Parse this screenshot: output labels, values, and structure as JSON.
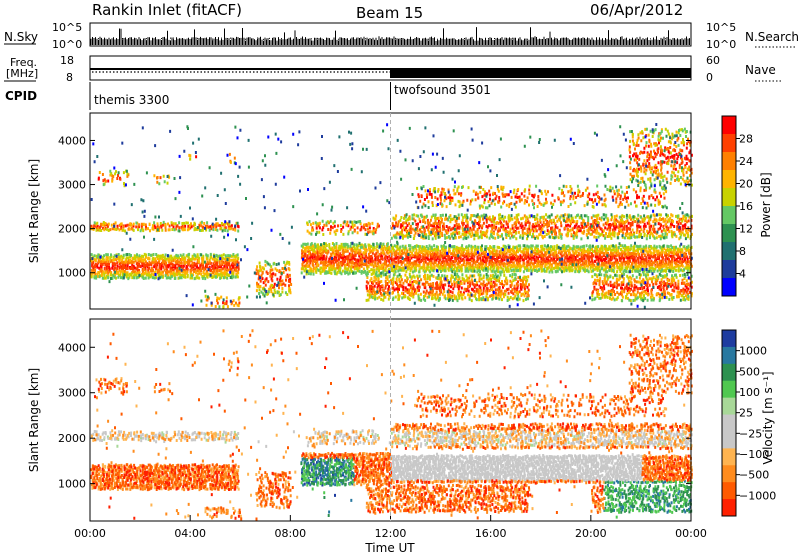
{
  "header": {
    "station": "Rankin Inlet (fitACF)",
    "beam": "Beam 15",
    "date": "06/Apr/2012"
  },
  "chart_data": [
    {
      "type": "line",
      "panel": "noise",
      "left_label": "N.Sky",
      "right_label": "N.Search",
      "left_ticks": [
        "10^5",
        "10^0"
      ],
      "right_ticks": [
        "10^5",
        "10^0"
      ]
    },
    {
      "type": "line",
      "panel": "frequency",
      "left_label_1": "Freq.",
      "left_label_2": "[MHz]",
      "right_label": "Nave",
      "left_ticks": [
        "18",
        "8"
      ],
      "right_ticks": [
        "60",
        "0"
      ]
    },
    {
      "type": "table",
      "panel": "cpid",
      "label": "CPID",
      "segments": [
        {
          "name": "themis 3300",
          "start_hour": 0
        },
        {
          "name": "twofsound 3501",
          "start_hour": 12
        }
      ]
    },
    {
      "type": "heatmap",
      "panel": "power",
      "ylabel": "Slant Range [km]",
      "ylim": [
        200,
        4600
      ],
      "yticks": [
        "1000",
        "2000",
        "3000",
        "4000"
      ],
      "colorbar_label": "Power [dB]",
      "colorbar_ticks": [
        "28",
        "24",
        "20",
        "16",
        "12",
        "8",
        "4"
      ],
      "colors": [
        "#ff0000",
        "#ff4000",
        "#ff8000",
        "#ffb400",
        "#c8d200",
        "#64c864",
        "#2d9150",
        "#207070",
        "#1e3c9c",
        "#0000ff"
      ]
    },
    {
      "type": "heatmap",
      "panel": "velocity",
      "ylabel": "Slant Range [km]",
      "ylim": [
        200,
        4600
      ],
      "yticks": [
        "1000",
        "2000",
        "3000",
        "4000"
      ],
      "xlabel": "Time UT",
      "xlim": [
        0,
        24
      ],
      "xticks": [
        "00:00",
        "04:00",
        "08:00",
        "12:00",
        "16:00",
        "20:00",
        "00:00"
      ],
      "colorbar_label": "Velocity [m s⁻¹]",
      "colorbar_ticks": [
        "1000",
        "500",
        "100",
        "25",
        "−25",
        "−100",
        "−500",
        "−1000"
      ],
      "colors": [
        "#1e3ca0",
        "#2878a0",
        "#2d9150",
        "#50c850",
        "#a8d898",
        "#c8c8c8",
        "#c8c8c8",
        "#ffb450",
        "#ff8c1e",
        "#ff5a00",
        "#ff2000"
      ]
    }
  ]
}
